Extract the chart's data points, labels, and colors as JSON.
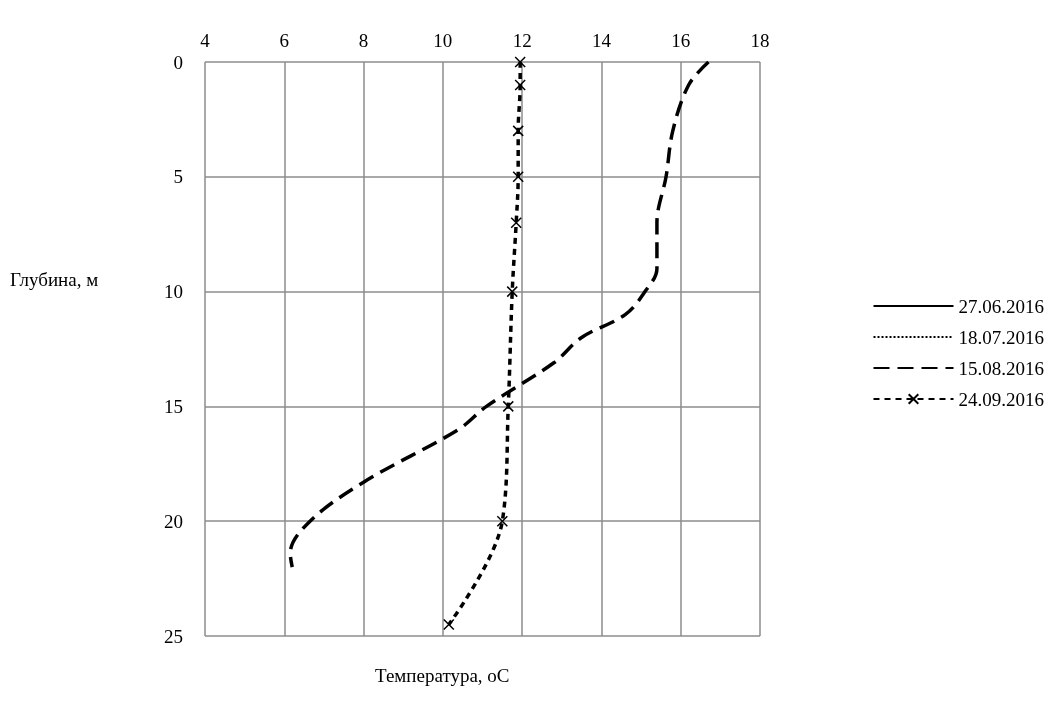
{
  "chart_data": {
    "type": "line",
    "xlabel": "Температура, оС",
    "ylabel": "Глубина, м",
    "xlim": [
      4,
      18
    ],
    "xticks": [
      4,
      6,
      8,
      10,
      12,
      14,
      16,
      18
    ],
    "ylim": [
      25,
      0
    ],
    "yticks": [
      0,
      5,
      10,
      15,
      20,
      25
    ],
    "grid": true,
    "legend": "right",
    "series": [
      {
        "name": "27.06.2016",
        "color": "#000000",
        "line_style": "solid",
        "marker": "none"
      },
      {
        "name": "18.07.2016",
        "color": "#000000",
        "line_style": "dotted",
        "marker": "none"
      },
      {
        "name": "15.08.2016",
        "color": "#000000",
        "line_style": "dashed",
        "marker": "none",
        "x": [
          16.7,
          16.2,
          15.8,
          15.63,
          15.4,
          15.4,
          15.1,
          14.6,
          13.5,
          12.8,
          11.1,
          10.4,
          8,
          6.65,
          6.15,
          6.2
        ],
        "values": [
          0,
          1,
          3,
          5,
          7,
          9,
          10,
          11,
          12,
          13.1,
          15,
          16,
          18.3,
          20,
          21.4,
          22
        ]
      },
      {
        "name": "24.09.2016",
        "color": "#000000",
        "line_style": "dashed",
        "marker": "cross",
        "x": [
          11.95,
          11.95,
          11.9,
          11.9,
          11.85,
          11.75,
          11.65,
          11.5,
          10.15
        ],
        "values": [
          0,
          1,
          3,
          5,
          7,
          10,
          15,
          20,
          24.5
        ]
      }
    ]
  }
}
